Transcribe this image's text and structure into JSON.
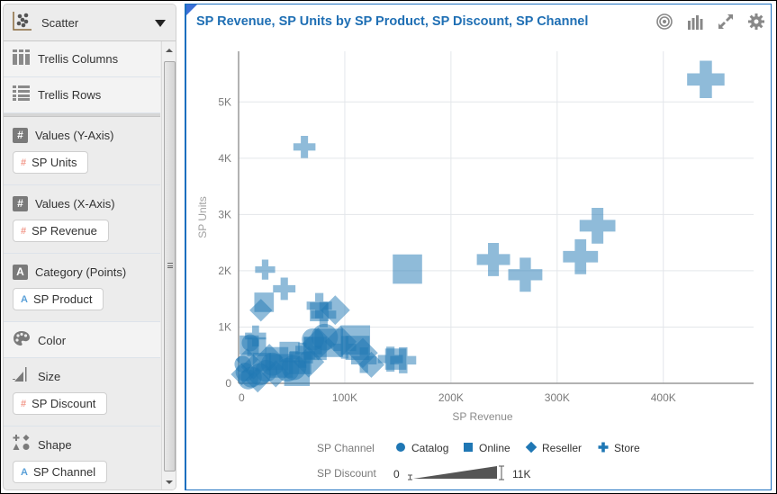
{
  "left_panel": {
    "viz_type": {
      "label": "Scatter",
      "icon": "scatter-chart-icon"
    },
    "trellis": [
      {
        "label": "Trellis Columns",
        "icon": "trellis-columns-icon"
      },
      {
        "label": "Trellis Rows",
        "icon": "trellis-rows-icon"
      }
    ],
    "sections": [
      {
        "label": "Values (Y-Axis)",
        "icon": "hash-icon",
        "pill": {
          "label": "SP Units",
          "type": "number"
        }
      },
      {
        "label": "Values (X-Axis)",
        "icon": "hash-icon",
        "pill": {
          "label": "SP Revenue",
          "type": "number"
        }
      },
      {
        "label": "Category (Points)",
        "icon": "attribute-icon",
        "pill": {
          "label": "SP Product",
          "type": "attribute"
        }
      },
      {
        "label": "Color",
        "icon": "palette-icon"
      },
      {
        "label": "Size",
        "icon": "size-icon",
        "pill": {
          "label": "SP Discount",
          "type": "number"
        }
      },
      {
        "label": "Shape",
        "icon": "shapes-icon",
        "pill": {
          "label": "SP Channel",
          "type": "attribute"
        }
      }
    ],
    "icon_glyphs": {
      "hash": "#",
      "attribute": "A"
    }
  },
  "chart_panel": {
    "title": "SP Revenue, SP Units by SP Product, SP Discount, SP Channel",
    "toolbar": [
      "target-icon",
      "bar-chart-icon",
      "expand-icon",
      "gear-icon"
    ]
  },
  "chart_data": {
    "type": "scatter",
    "title": "SP Revenue, SP Units by SP Product, SP Discount, SP Channel",
    "xlabel": "SP Revenue",
    "ylabel": "SP Units",
    "xlim": [
      0,
      485000
    ],
    "ylim": [
      0,
      5900
    ],
    "x_ticks": [
      {
        "value": 0,
        "label": "0"
      },
      {
        "value": 100000,
        "label": "100K"
      },
      {
        "value": 200000,
        "label": "200K"
      },
      {
        "value": 300000,
        "label": "300K"
      },
      {
        "value": 400000,
        "label": "400K"
      }
    ],
    "y_ticks": [
      {
        "value": 0,
        "label": "0"
      },
      {
        "value": 1000,
        "label": "1K"
      },
      {
        "value": 2000,
        "label": "2K"
      },
      {
        "value": 3000,
        "label": "3K"
      },
      {
        "value": 4000,
        "label": "4K"
      },
      {
        "value": 5000,
        "label": "5K"
      }
    ],
    "grid": true,
    "color": "#1f77b4",
    "legend": {
      "position": "bottom",
      "shape_title": "SP Channel",
      "shapes": [
        {
          "label": "Catalog",
          "shape": "circle"
        },
        {
          "label": "Online",
          "shape": "square"
        },
        {
          "label": "Reseller",
          "shape": "diamond"
        },
        {
          "label": "Store",
          "shape": "plus"
        }
      ],
      "size_title": "SP Discount",
      "size_min": "0",
      "size_max": "11K"
    },
    "points": [
      {
        "x": 440000,
        "y": 5400,
        "shape": "plus",
        "size": 9500
      },
      {
        "x": 62000,
        "y": 4200,
        "shape": "plus",
        "size": 2200
      },
      {
        "x": 338000,
        "y": 2800,
        "shape": "plus",
        "size": 8500
      },
      {
        "x": 322000,
        "y": 2250,
        "shape": "plus",
        "size": 8000
      },
      {
        "x": 240000,
        "y": 2200,
        "shape": "plus",
        "size": 7000
      },
      {
        "x": 270000,
        "y": 1930,
        "shape": "plus",
        "size": 7500
      },
      {
        "x": 159000,
        "y": 2030,
        "shape": "square",
        "size": 6500
      },
      {
        "x": 25000,
        "y": 2020,
        "shape": "plus",
        "size": 1600
      },
      {
        "x": 43000,
        "y": 1680,
        "shape": "plus",
        "size": 2300
      },
      {
        "x": 24000,
        "y": 1440,
        "shape": "square",
        "size": 2000
      },
      {
        "x": 21000,
        "y": 1300,
        "shape": "diamond",
        "size": 1600
      },
      {
        "x": 76000,
        "y": 1380,
        "shape": "plus",
        "size": 3300
      },
      {
        "x": 80000,
        "y": 1220,
        "shape": "plus",
        "size": 3300
      },
      {
        "x": 91000,
        "y": 1300,
        "shape": "diamond",
        "size": 3600
      },
      {
        "x": 76000,
        "y": 1270,
        "shape": "square",
        "size": 1800
      },
      {
        "x": 16000,
        "y": 840,
        "shape": "plus",
        "size": 1900
      },
      {
        "x": 10000,
        "y": 680,
        "shape": "square",
        "size": 1900
      },
      {
        "x": 17000,
        "y": 650,
        "shape": "square",
        "size": 1800
      },
      {
        "x": 11000,
        "y": 720,
        "shape": "circle",
        "size": 1300
      },
      {
        "x": 110000,
        "y": 770,
        "shape": "square",
        "size": 6500
      },
      {
        "x": 112000,
        "y": 630,
        "shape": "square",
        "size": 3800
      },
      {
        "x": 117000,
        "y": 540,
        "shape": "diamond",
        "size": 3800
      },
      {
        "x": 118000,
        "y": 410,
        "shape": "plus",
        "size": 3400
      },
      {
        "x": 143000,
        "y": 430,
        "shape": "plus",
        "size": 3200
      },
      {
        "x": 155000,
        "y": 410,
        "shape": "plus",
        "size": 3600
      },
      {
        "x": 148000,
        "y": 430,
        "shape": "square",
        "size": 2600
      },
      {
        "x": 81000,
        "y": 820,
        "shape": "circle",
        "size": 5000
      },
      {
        "x": 85000,
        "y": 720,
        "shape": "square",
        "size": 6000
      },
      {
        "x": 75000,
        "y": 700,
        "shape": "diamond",
        "size": 4800
      },
      {
        "x": 66000,
        "y": 590,
        "shape": "plus",
        "size": 3800
      },
      {
        "x": 96000,
        "y": 740,
        "shape": "diamond",
        "size": 4500
      },
      {
        "x": 70000,
        "y": 780,
        "shape": "circle",
        "size": 3000
      },
      {
        "x": 72000,
        "y": 620,
        "shape": "square",
        "size": 3400
      },
      {
        "x": 60000,
        "y": 500,
        "shape": "plus",
        "size": 3300
      },
      {
        "x": 66000,
        "y": 380,
        "shape": "diamond",
        "size": 4200
      },
      {
        "x": 58000,
        "y": 360,
        "shape": "square",
        "size": 3000
      },
      {
        "x": 52000,
        "y": 280,
        "shape": "circle",
        "size": 4200
      },
      {
        "x": 55000,
        "y": 180,
        "shape": "square",
        "size": 4500
      },
      {
        "x": 46000,
        "y": 240,
        "shape": "circle",
        "size": 3600
      },
      {
        "x": 40000,
        "y": 310,
        "shape": "square",
        "size": 3600
      },
      {
        "x": 36000,
        "y": 440,
        "shape": "square",
        "size": 3300
      },
      {
        "x": 29000,
        "y": 460,
        "shape": "diamond",
        "size": 2800
      },
      {
        "x": 32000,
        "y": 340,
        "shape": "circle",
        "size": 3400
      },
      {
        "x": 26000,
        "y": 220,
        "shape": "circle",
        "size": 3000
      },
      {
        "x": 20000,
        "y": 160,
        "shape": "circle",
        "size": 3000
      },
      {
        "x": 14000,
        "y": 290,
        "shape": "diamond",
        "size": 2200
      },
      {
        "x": 12000,
        "y": 110,
        "shape": "circle",
        "size": 2500
      },
      {
        "x": 6000,
        "y": 200,
        "shape": "circle",
        "size": 1800
      },
      {
        "x": 4000,
        "y": 340,
        "shape": "circle",
        "size": 1200
      },
      {
        "x": 3000,
        "y": 160,
        "shape": "diamond",
        "size": 1400
      },
      {
        "x": 9000,
        "y": 70,
        "shape": "circle",
        "size": 2200
      },
      {
        "x": 18000,
        "y": 60,
        "shape": "diamond",
        "size": 2200
      },
      {
        "x": 22000,
        "y": 380,
        "shape": "square",
        "size": 1600
      },
      {
        "x": 8000,
        "y": 420,
        "shape": "diamond",
        "size": 1500
      },
      {
        "x": 48000,
        "y": 560,
        "shape": "square",
        "size": 2200
      },
      {
        "x": 35000,
        "y": 170,
        "shape": "diamond",
        "size": 2800
      },
      {
        "x": 100000,
        "y": 640,
        "shape": "plus",
        "size": 2400
      },
      {
        "x": 125000,
        "y": 330,
        "shape": "diamond",
        "size": 2500
      }
    ]
  }
}
